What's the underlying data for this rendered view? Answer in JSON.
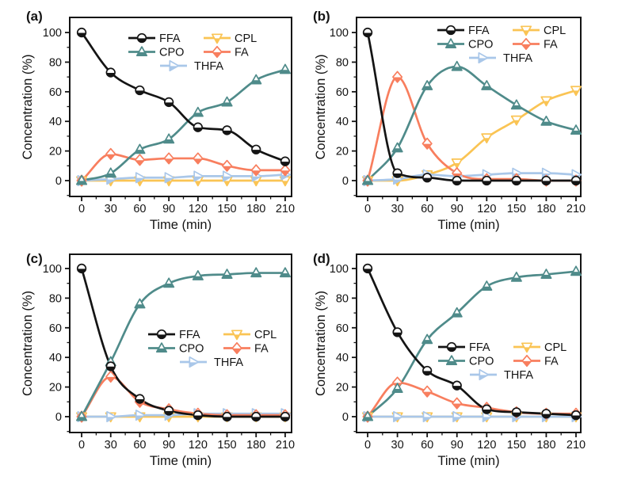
{
  "figure": {
    "background": "#ffffff",
    "axis_color": "#141414",
    "description": "Four-panel line chart figure (a-d) of Concentration (%) vs Time (min) for species FFA, CPO, CPL, FA, THFA"
  },
  "chart_data": [
    {
      "type": "line",
      "panel_label": "(a)",
      "xlabel": "Time (min)",
      "ylabel": "Concentration (%)",
      "x": [
        0,
        30,
        60,
        90,
        120,
        150,
        180,
        210
      ],
      "xticks": [
        0,
        30,
        60,
        90,
        120,
        150,
        180,
        210
      ],
      "yticks": [
        0,
        20,
        40,
        60,
        80,
        100
      ],
      "x_minor_ticks": [
        15,
        45,
        75,
        105,
        135,
        165,
        195
      ],
      "y_minor_ticks": [
        -10,
        10,
        30,
        50,
        70,
        90
      ],
      "xlim": [
        -12.3,
        216.6
      ],
      "ylim": [
        -10.7,
        110.2
      ],
      "grid": false,
      "legend": {
        "rows": [
          [
            "FFA",
            "CPL"
          ],
          [
            "CPO",
            "FA"
          ],
          [
            "THFA"
          ]
        ],
        "position": "upper-inside",
        "xy": [
          162,
          48
        ]
      },
      "series": [
        {
          "name": "FFA",
          "color": "#141414",
          "marker": "half-circle",
          "values": [
            100,
            73,
            61,
            53,
            36,
            34,
            21,
            13
          ]
        },
        {
          "name": "CPO",
          "color": "#4f8b8a",
          "marker": "half-triangle-up",
          "values": [
            0,
            5,
            21,
            28,
            46,
            53,
            68,
            75
          ]
        },
        {
          "name": "CPL",
          "color": "#fac454",
          "marker": "half-triangle-down",
          "values": [
            0,
            0,
            0,
            0,
            0,
            0,
            0,
            0
          ]
        },
        {
          "name": "FA",
          "color": "#f87e5e",
          "marker": "half-diamond",
          "values": [
            0,
            18,
            14,
            15,
            15,
            10,
            7,
            7
          ]
        },
        {
          "name": "THFA",
          "color": "#a9c7e9",
          "marker": "half-triangle-right",
          "values": [
            0,
            1,
            2,
            2,
            3,
            3,
            3,
            4
          ]
        }
      ]
    },
    {
      "type": "line",
      "panel_label": "(b)",
      "xlabel": "Time (min)",
      "ylabel": "Concentration (%)",
      "x": [
        0,
        30,
        60,
        90,
        120,
        150,
        180,
        210
      ],
      "xticks": [
        0,
        30,
        60,
        90,
        120,
        150,
        180,
        210
      ],
      "yticks": [
        0,
        20,
        40,
        60,
        80,
        100
      ],
      "x_minor_ticks": [
        15,
        45,
        75,
        105,
        135,
        165,
        195
      ],
      "y_minor_ticks": [
        -10,
        10,
        30,
        50,
        70,
        90
      ],
      "xlim": [
        -11.2,
        214.8
      ],
      "ylim": [
        -10.7,
        110.2
      ],
      "grid": false,
      "legend": {
        "rows": [
          [
            "FFA",
            "CPL"
          ],
          [
            "CPO",
            "FA"
          ],
          [
            "THFA"
          ]
        ],
        "position": "upper-inside",
        "xy": [
          162,
          38
        ]
      },
      "series": [
        {
          "name": "FFA",
          "color": "#141414",
          "marker": "half-circle",
          "values": [
            100,
            5,
            2,
            0,
            0,
            0,
            0,
            0
          ]
        },
        {
          "name": "CPO",
          "color": "#4f8b8a",
          "marker": "half-triangle-up",
          "values": [
            0,
            22,
            64,
            77,
            64,
            51,
            40,
            34
          ]
        },
        {
          "name": "CPL",
          "color": "#fac454",
          "marker": "half-triangle-down",
          "values": [
            0,
            0,
            4,
            12,
            29,
            41,
            54,
            61
          ]
        },
        {
          "name": "FA",
          "color": "#f87e5e",
          "marker": "half-diamond",
          "values": [
            0,
            70,
            25,
            5,
            1,
            1,
            0,
            0
          ]
        },
        {
          "name": "THFA",
          "color": "#a9c7e9",
          "marker": "half-triangle-right",
          "values": [
            0,
            1,
            4,
            3,
            4,
            5,
            5,
            4
          ]
        }
      ]
    },
    {
      "type": "line",
      "panel_label": "(c)",
      "xlabel": "Time (min)",
      "ylabel": "Concentration (%)",
      "x": [
        0,
        30,
        60,
        90,
        120,
        150,
        180,
        210
      ],
      "xticks": [
        0,
        30,
        60,
        90,
        120,
        150,
        180,
        210
      ],
      "yticks": [
        0,
        20,
        40,
        60,
        80,
        100
      ],
      "x_minor_ticks": [
        15,
        45,
        75,
        105,
        135,
        165,
        195
      ],
      "y_minor_ticks": [
        -10,
        10,
        30,
        50,
        70,
        90
      ],
      "xlim": [
        -12.3,
        216.6
      ],
      "ylim": [
        -10.7,
        109.6
      ],
      "grid": false,
      "legend": {
        "rows": [
          [
            "FFA",
            "CPL"
          ],
          [
            "CPO",
            "FA"
          ],
          [
            "THFA"
          ]
        ],
        "position": "middle-inside",
        "xy": [
          187,
          116
        ]
      },
      "series": [
        {
          "name": "FFA",
          "color": "#141414",
          "marker": "half-circle",
          "values": [
            100,
            34,
            12,
            4,
            1,
            0,
            0,
            0
          ]
        },
        {
          "name": "CPO",
          "color": "#4f8b8a",
          "marker": "half-triangle-up",
          "values": [
            0,
            37,
            76,
            90,
            95,
            96,
            97,
            97
          ]
        },
        {
          "name": "CPL",
          "color": "#fac454",
          "marker": "half-triangle-down",
          "values": [
            0,
            0,
            0,
            0,
            0,
            0,
            0,
            0
          ]
        },
        {
          "name": "FA",
          "color": "#f87e5e",
          "marker": "half-diamond",
          "values": [
            0,
            27,
            10,
            5,
            2,
            1,
            1,
            1
          ]
        },
        {
          "name": "THFA",
          "color": "#a9c7e9",
          "marker": "half-triangle-right",
          "values": [
            0,
            0,
            1,
            1,
            2,
            2,
            2,
            2
          ]
        }
      ]
    },
    {
      "type": "line",
      "panel_label": "(d)",
      "xlabel": "Time (min)",
      "ylabel": "Concentration (%)",
      "x": [
        0,
        30,
        60,
        90,
        120,
        150,
        180,
        210
      ],
      "xticks": [
        0,
        30,
        60,
        90,
        120,
        150,
        180,
        210
      ],
      "yticks": [
        0,
        20,
        40,
        60,
        80,
        100
      ],
      "x_minor_ticks": [
        15,
        45,
        75,
        105,
        135,
        165,
        195
      ],
      "y_minor_ticks": [
        -10,
        10,
        30,
        50,
        70,
        90
      ],
      "xlim": [
        -11.2,
        214.8
      ],
      "ylim": [
        -10.7,
        109.6
      ],
      "grid": false,
      "legend": {
        "rows": [
          [
            "FFA",
            "CPL"
          ],
          [
            "CPO",
            "FA"
          ],
          [
            "THFA"
          ]
        ],
        "position": "middle-inside",
        "xy": [
          163,
          132
        ]
      },
      "series": [
        {
          "name": "FFA",
          "color": "#141414",
          "marker": "half-circle",
          "values": [
            100,
            57,
            31,
            21,
            5,
            3,
            2,
            1
          ]
        },
        {
          "name": "CPO",
          "color": "#4f8b8a",
          "marker": "half-triangle-up",
          "values": [
            0,
            19,
            52,
            70,
            88,
            94,
            96,
            98
          ]
        },
        {
          "name": "CPL",
          "color": "#fac454",
          "marker": "half-triangle-down",
          "values": [
            0,
            0,
            0,
            0,
            0,
            0,
            0,
            0
          ]
        },
        {
          "name": "FA",
          "color": "#f87e5e",
          "marker": "half-diamond",
          "values": [
            0,
            23,
            17,
            9,
            6,
            3,
            2,
            2
          ]
        },
        {
          "name": "THFA",
          "color": "#a9c7e9",
          "marker": "half-triangle-right",
          "values": [
            0,
            0,
            0,
            0,
            0,
            0,
            0,
            0
          ]
        }
      ]
    }
  ]
}
